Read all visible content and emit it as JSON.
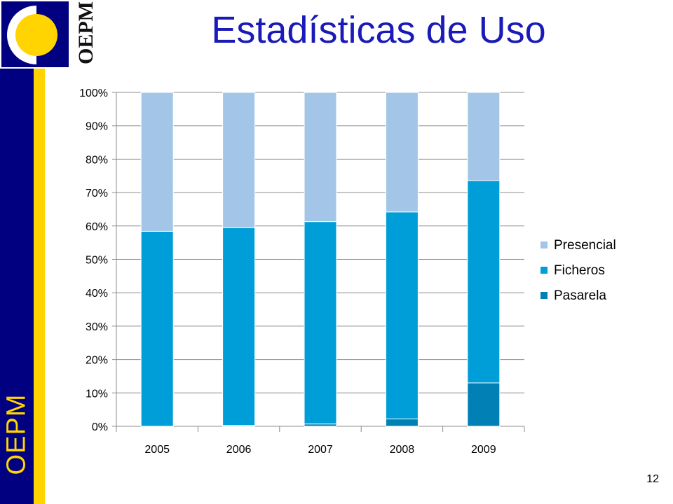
{
  "slide": {
    "title": "Estadísticas de Uso",
    "side_text": "OEPM",
    "logo_text": "OEPM",
    "page_number": "12"
  },
  "colors": {
    "brand_blue": "#000080",
    "brand_yellow": "#ffd400",
    "title": "#1a1ab8"
  },
  "chart_data": {
    "type": "bar",
    "stacked": true,
    "percent": true,
    "title": "",
    "xlabel": "",
    "ylabel": "",
    "categories": [
      "2005",
      "2006",
      "2007",
      "2008",
      "2009"
    ],
    "ylim": [
      0,
      100
    ],
    "yticks": [
      "0%",
      "10%",
      "20%",
      "30%",
      "40%",
      "50%",
      "60%",
      "70%",
      "80%",
      "90%",
      "100%"
    ],
    "grid": true,
    "legend_position": "right",
    "series": [
      {
        "name": "Pasarela",
        "color": "#0080b4",
        "values": [
          0,
          0.3,
          0.7,
          2.2,
          13
        ]
      },
      {
        "name": "Ficheros",
        "color": "#009ed8",
        "values": [
          58.4,
          59.2,
          60.6,
          62,
          60.6
        ]
      },
      {
        "name": "Presencial",
        "color": "#a3c6e8",
        "values": [
          41.6,
          40.5,
          38.7,
          35.8,
          26.4
        ]
      }
    ]
  }
}
